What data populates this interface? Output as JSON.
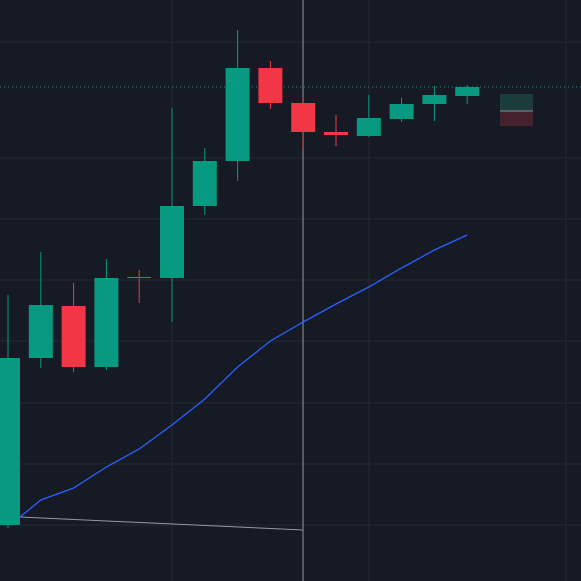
{
  "chart_data": {
    "type": "candlestick",
    "categories": [
      null,
      null,
      null,
      null,
      null,
      null,
      null,
      null,
      null,
      null,
      null,
      null,
      null,
      null,
      null
    ],
    "open": [
      56,
      223,
      275,
      214,
      304,
      303,
      375,
      420,
      513,
      478,
      449,
      445,
      462,
      477,
      485
    ],
    "high": [
      286,
      329,
      298,
      322,
      311,
      473,
      433,
      551,
      520,
      483,
      466,
      486,
      483,
      495,
      496
    ],
    "low": [
      53,
      213,
      209,
      211,
      278,
      259,
      366,
      400,
      472,
      431,
      435,
      444,
      459,
      460,
      477
    ],
    "close": [
      223,
      276,
      214,
      303,
      303,
      375,
      420,
      513,
      478,
      449,
      446,
      463,
      477,
      486,
      494
    ],
    "up_color": "#089981",
    "down_color": "#f23645",
    "series": [
      {
        "color": "#2962ff",
        "values": [
          64,
          81,
          93,
          114,
          132,
          156,
          182,
          214,
          240,
          259,
          277,
          294,
          313,
          331,
          346
        ]
      }
    ],
    "ylim": [
      0,
      581
    ]
  }
}
